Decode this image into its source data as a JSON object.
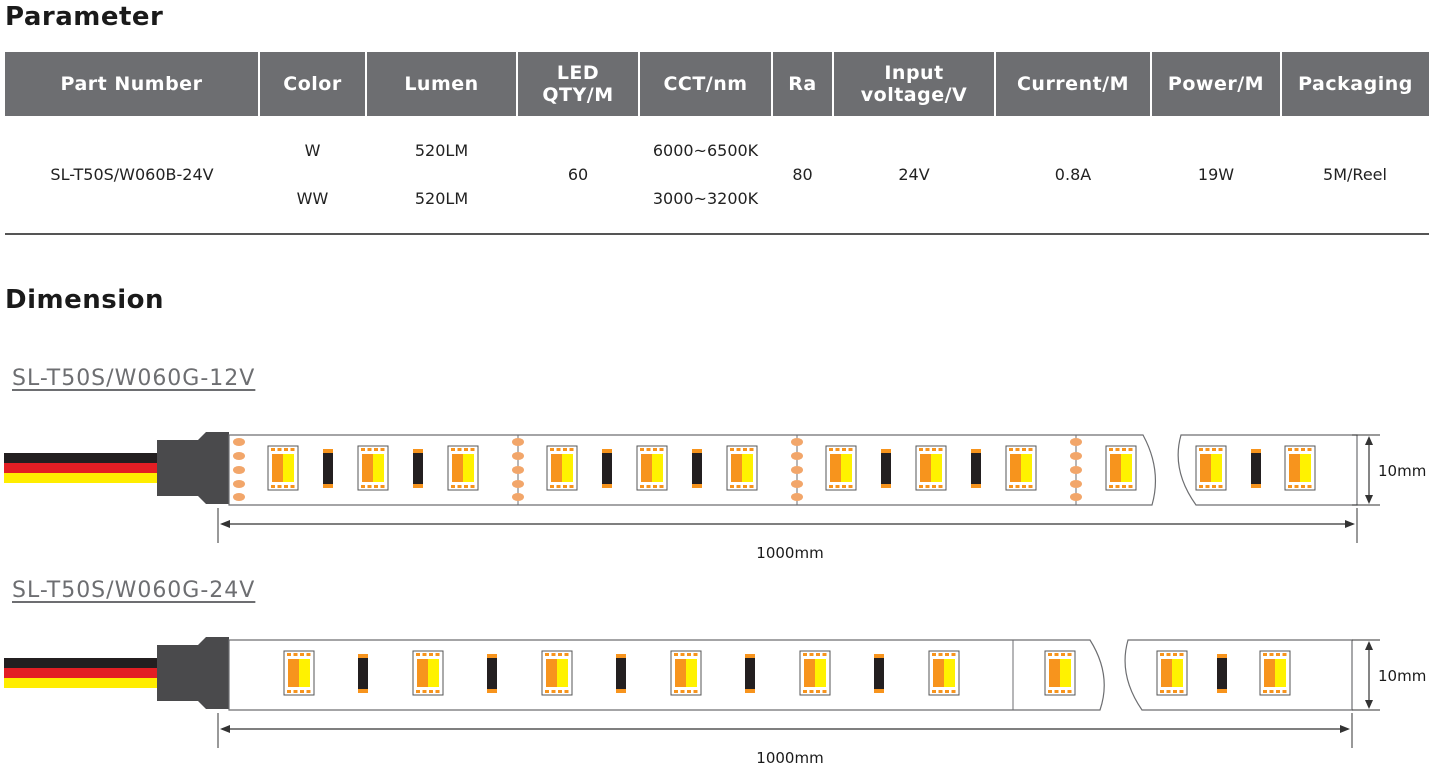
{
  "parameter": {
    "title": "Parameter",
    "headers": [
      "Part Number",
      "Color",
      "Lumen",
      "LED\nQTY/M",
      "CCT/nm",
      "Ra",
      "Input\nvoltage/V",
      "Current/M",
      "Power/M",
      "Packaging"
    ],
    "row": {
      "part_number": "SL-T50S/W060B-24V",
      "colors": [
        "W",
        "WW"
      ],
      "lumens": [
        "520LM",
        "520LM"
      ],
      "led_qty": "60",
      "cct": [
        "6000~6500K",
        "3000~3200K"
      ],
      "ra": "80",
      "voltage": "24V",
      "current": "0.8A",
      "power": "19W",
      "packaging": "5M/Reel"
    }
  },
  "dimension": {
    "title": "Dimension",
    "strips": [
      {
        "label": "SL-T50S/W060G-12V",
        "width_label": "10mm",
        "length_label": "1000mm"
      },
      {
        "label": "SL-T50S/W060G-24V",
        "width_label": "10mm",
        "length_label": "1000mm"
      }
    ]
  },
  "colors": {
    "header_bg": "#6d6e71",
    "wire_black": "#231f20",
    "wire_red": "#e31e24",
    "wire_yellow": "#ffed00",
    "led_orange": "#f7941d",
    "led_yellow": "#fff200",
    "pad_color": "#f2a66a"
  }
}
